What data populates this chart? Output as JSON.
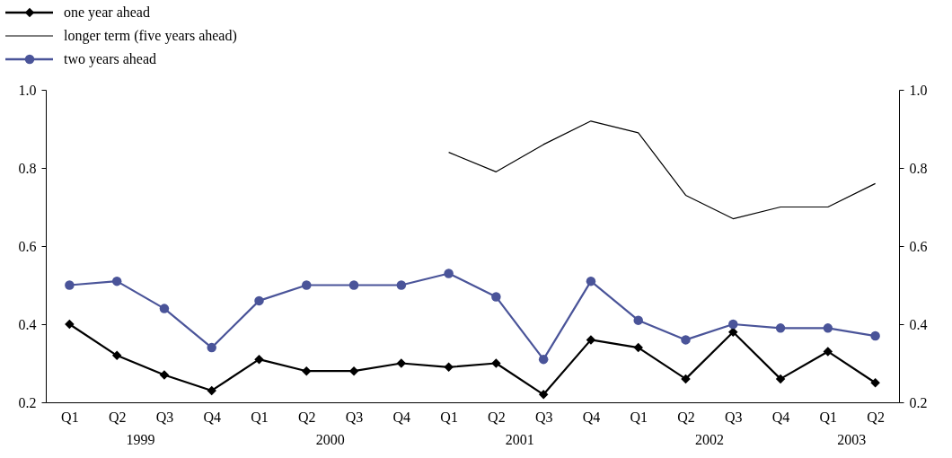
{
  "chart_data": {
    "type": "line",
    "categories": [
      "Q1",
      "Q2",
      "Q3",
      "Q4",
      "Q1",
      "Q2",
      "Q3",
      "Q4",
      "Q1",
      "Q2",
      "Q3",
      "Q4",
      "Q1",
      "Q2",
      "Q3",
      "Q4",
      "Q1",
      "Q2"
    ],
    "series": [
      {
        "name": "one year ahead",
        "color": "#000000",
        "marker": "diamond",
        "values": [
          0.4,
          0.32,
          0.27,
          0.23,
          0.31,
          0.28,
          0.28,
          0.3,
          0.29,
          0.3,
          0.22,
          0.36,
          0.34,
          0.26,
          0.38,
          0.26,
          0.33,
          0.25
        ]
      },
      {
        "name": "longer term (five years ahead)",
        "color": "#000000",
        "marker": "none",
        "values": [
          null,
          null,
          null,
          null,
          null,
          null,
          null,
          null,
          0.84,
          0.79,
          0.86,
          0.92,
          0.89,
          0.73,
          0.67,
          0.7,
          0.7,
          0.76
        ]
      },
      {
        "name": "two years ahead",
        "color": "#4a5499",
        "marker": "circle",
        "values": [
          0.5,
          0.51,
          0.44,
          0.34,
          0.46,
          0.5,
          0.5,
          0.5,
          0.53,
          0.47,
          0.31,
          0.51,
          0.41,
          0.36,
          0.4,
          0.39,
          0.39,
          0.37
        ]
      }
    ],
    "annotations": [
      "1999",
      "2000",
      "2001",
      "2002",
      "2003"
    ],
    "ylim": [
      0.2,
      1.0
    ],
    "yticks": [
      {
        "value": 0.2,
        "label": "0.2"
      },
      {
        "value": 0.4,
        "label": "0.4"
      },
      {
        "value": 0.6,
        "label": "0.6"
      },
      {
        "value": 0.8,
        "label": "0.8"
      },
      {
        "value": 1.0,
        "label": "1.0"
      }
    ],
    "y2lim": [
      0.2,
      1.0
    ],
    "y2ticks": [
      {
        "value": 0.2,
        "label": "0.2"
      },
      {
        "value": 0.4,
        "label": "0.4"
      },
      {
        "value": 0.6,
        "label": "0.6"
      },
      {
        "value": 0.8,
        "label": "0.8"
      },
      {
        "value": 1.0,
        "label": "1.0"
      }
    ],
    "legend": "top left",
    "grid": false
  }
}
